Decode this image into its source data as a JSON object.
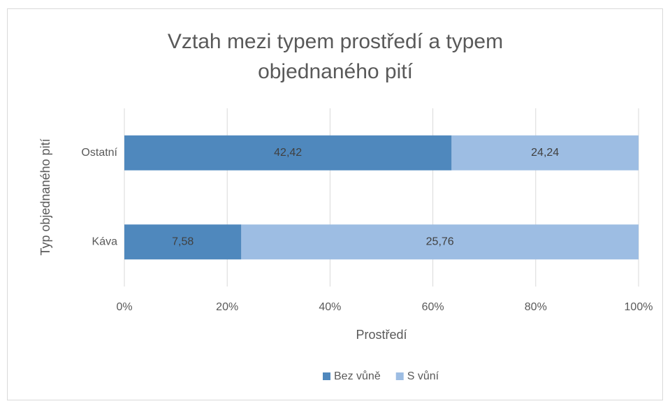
{
  "chart_data": {
    "type": "bar",
    "orientation": "horizontal",
    "stack": "percent",
    "title": "Vztah mezi typem prostředí a typem objednaného pití",
    "x_label": "Prostředí",
    "y_label": "Typ objednaného pití",
    "categories": [
      "Ostatní",
      "Káva"
    ],
    "series": [
      {
        "name": "Bez vůně",
        "color": "#4f88bd",
        "values": [
          42.42,
          7.58
        ],
        "value_labels": [
          "42,42",
          "7,58"
        ]
      },
      {
        "name": "S vůní",
        "color": "#9dbde3",
        "values": [
          24.24,
          25.76
        ],
        "value_labels": [
          "24,24",
          "25,76"
        ]
      }
    ],
    "xlim": [
      0,
      100
    ],
    "xticks": [
      {
        "value": 0,
        "label": "0%"
      },
      {
        "value": 20,
        "label": "20%"
      },
      {
        "value": 40,
        "label": "40%"
      },
      {
        "value": 60,
        "label": "60%"
      },
      {
        "value": 80,
        "label": "80%"
      },
      {
        "value": 100,
        "label": "100%"
      }
    ],
    "grid": true,
    "legend": "bottom"
  }
}
